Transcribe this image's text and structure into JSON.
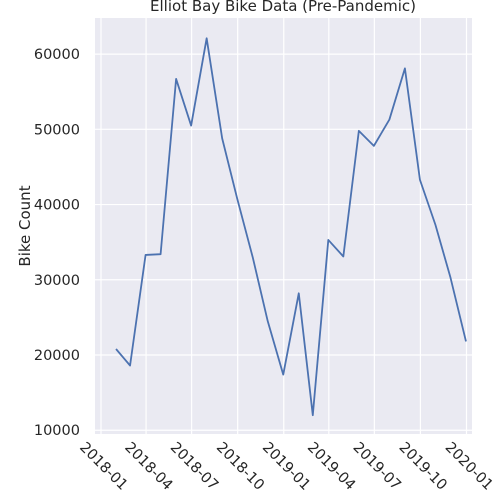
{
  "chart_data": {
    "type": "line",
    "title": "Elliot Bay Bike Data (Pre-Pandemic)",
    "xlabel": "",
    "ylabel": "Bike Count",
    "grid": true,
    "colors": {
      "background": "#eaeaf2",
      "grid": "#ffffff",
      "line": "#4c72b0"
    },
    "x_ticks": [
      "2018-01",
      "2018-04",
      "2018-07",
      "2018-10",
      "2019-01",
      "2019-04",
      "2019-07",
      "2019-10",
      "2020-01"
    ],
    "x_range": [
      "2017-12-20",
      "2020-01-12"
    ],
    "y_ticks": [
      10000,
      20000,
      30000,
      40000,
      50000,
      60000
    ],
    "ylim": [
      9500,
      64800
    ],
    "series": [
      {
        "x": [
          "2018-01-31",
          "2018-02-28",
          "2018-03-31",
          "2018-04-30",
          "2018-05-31",
          "2018-06-30",
          "2018-07-31",
          "2018-08-31",
          "2018-09-30",
          "2018-10-31",
          "2018-11-30",
          "2018-12-31",
          "2019-01-31",
          "2019-02-28",
          "2019-03-31",
          "2019-04-30",
          "2019-05-31",
          "2019-06-30",
          "2019-07-31",
          "2019-08-31",
          "2019-09-30",
          "2019-10-31",
          "2019-11-30",
          "2019-12-31"
        ],
        "values": [
          20800,
          18600,
          33300,
          33400,
          56700,
          50500,
          62100,
          48800,
          40800,
          33000,
          24500,
          17400,
          28200,
          12000,
          35300,
          33100,
          49800,
          47800,
          51300,
          58100,
          43300,
          37300,
          30300,
          21800
        ]
      }
    ]
  }
}
